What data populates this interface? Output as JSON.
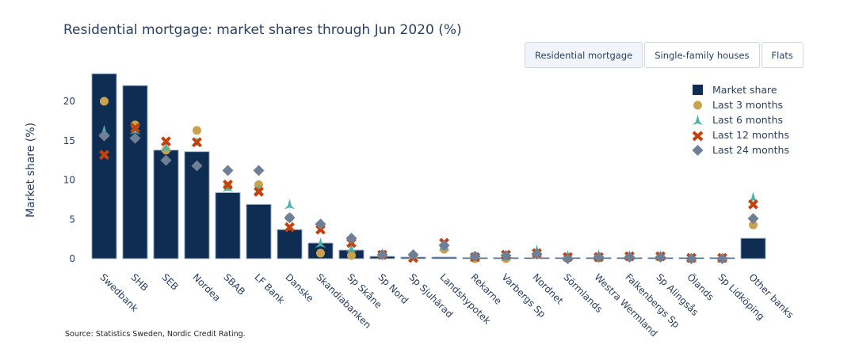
{
  "header": {
    "title": "Residential mortgage: market shares through Jun 2020 (%)"
  },
  "toggle_buttons": [
    {
      "label": "Residential mortgage",
      "active": true
    },
    {
      "label": "Single-family houses",
      "active": false
    },
    {
      "label": "Flats",
      "active": false
    }
  ],
  "footer": {
    "source": "Source: Statistics Sweden, Nordic Credit Rating."
  },
  "colors": {
    "bar": "#0f2d52",
    "bar_outline": "#a9b9cf",
    "last_3": "#c9a24f",
    "last_6": "#4ab3a8",
    "last_12": "#c2410c",
    "last_24": "#6f7f96",
    "text": "#2a3f5f"
  },
  "chart_data": {
    "type": "bar",
    "title": "Residential mortgage: market shares through Jun 2020 (%)",
    "xlabel": "",
    "ylabel": "Market share (%)",
    "ylim": [
      0,
      23.5
    ],
    "yticks": [
      0,
      5,
      10,
      15,
      20
    ],
    "grid": false,
    "legend_position": "top-right",
    "categories": [
      "Swedbank",
      "SHB",
      "SEB",
      "Nordea",
      "SBAB",
      "LF Bank",
      "Danske",
      "Skandiabanken",
      "Sp Skåne",
      "Sp Nord",
      "Sp Sjuhärad",
      "Landshypotek",
      "Rekarne",
      "Varbergs Sp",
      "Nordnet",
      "Sörmlands",
      "Westra Wermland",
      "Falkenbergs Sp",
      "Sp Alingsås",
      "Ölands",
      "Sp Lidköping",
      "Other banks"
    ],
    "series": [
      {
        "name": "Market share",
        "kind": "bar",
        "marker": "square",
        "values": [
          23.5,
          22.0,
          13.8,
          13.6,
          8.4,
          6.9,
          3.7,
          2.0,
          1.1,
          0.3,
          0.2,
          0.2,
          0.1,
          0.1,
          0.1,
          0.1,
          0.1,
          0.1,
          0.1,
          0.05,
          0.05,
          2.6
        ]
      },
      {
        "name": "Last 3 months",
        "kind": "scatter",
        "marker": "circle",
        "values": [
          20.0,
          17.0,
          13.8,
          16.3,
          9.2,
          9.4,
          5.2,
          0.7,
          0.4,
          0.5,
          0.3,
          1.2,
          0.0,
          0.0,
          0.5,
          0.2,
          0.1,
          0.2,
          0.2,
          0.0,
          0.0,
          4.3
        ]
      },
      {
        "name": "Last 6 months",
        "kind": "scatter",
        "marker": "triangle",
        "values": [
          16.2,
          16.3,
          14.1,
          14.7,
          9.0,
          8.7,
          6.8,
          1.9,
          1.3,
          0.5,
          0.2,
          1.5,
          0.1,
          0.2,
          1.0,
          0.3,
          0.4,
          0.3,
          0.3,
          0.0,
          0.0,
          7.7
        ]
      },
      {
        "name": "Last 12 months",
        "kind": "scatter",
        "marker": "x",
        "values": [
          13.2,
          16.6,
          14.9,
          14.8,
          9.4,
          8.5,
          4.0,
          3.7,
          2.0,
          0.5,
          0.1,
          2.0,
          0.2,
          0.5,
          0.7,
          0.2,
          0.2,
          0.3,
          0.3,
          0.1,
          0.1,
          6.9
        ]
      },
      {
        "name": "Last 24 months",
        "kind": "scatter",
        "marker": "diamond",
        "values": [
          15.6,
          15.3,
          12.5,
          11.8,
          11.2,
          11.2,
          5.2,
          4.4,
          2.6,
          0.5,
          0.5,
          1.7,
          0.3,
          0.4,
          0.6,
          0.0,
          0.2,
          0.2,
          0.2,
          0.0,
          0.0,
          5.1
        ]
      }
    ]
  }
}
